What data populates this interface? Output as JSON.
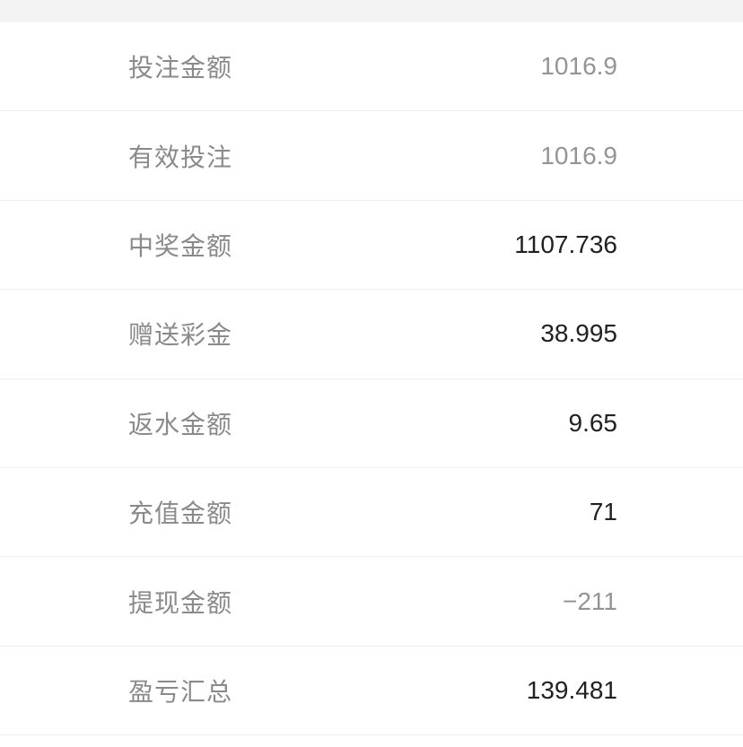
{
  "page": {
    "background": "#ffffff",
    "top_band_color": "#f3f3f4",
    "separator_color": "#efefef"
  },
  "colors": {
    "label": "#8a8a8a",
    "value_strong": "#212121",
    "value_muted": "#949494"
  },
  "rows": [
    {
      "label": "投注金额",
      "value": "1016.9",
      "emphasis": "muted"
    },
    {
      "label": "有效投注",
      "value": "1016.9",
      "emphasis": "muted"
    },
    {
      "label": "中奖金额",
      "value": "1107.736",
      "emphasis": "strong"
    },
    {
      "label": "赠送彩金",
      "value": "38.995",
      "emphasis": "strong"
    },
    {
      "label": "返水金额",
      "value": "9.65",
      "emphasis": "strong"
    },
    {
      "label": "充值金额",
      "value": "71",
      "emphasis": "strong"
    },
    {
      "label": "提现金额",
      "value": "−211",
      "emphasis": "muted"
    },
    {
      "label": "盈亏汇总",
      "value": "139.481",
      "emphasis": "strong"
    }
  ]
}
